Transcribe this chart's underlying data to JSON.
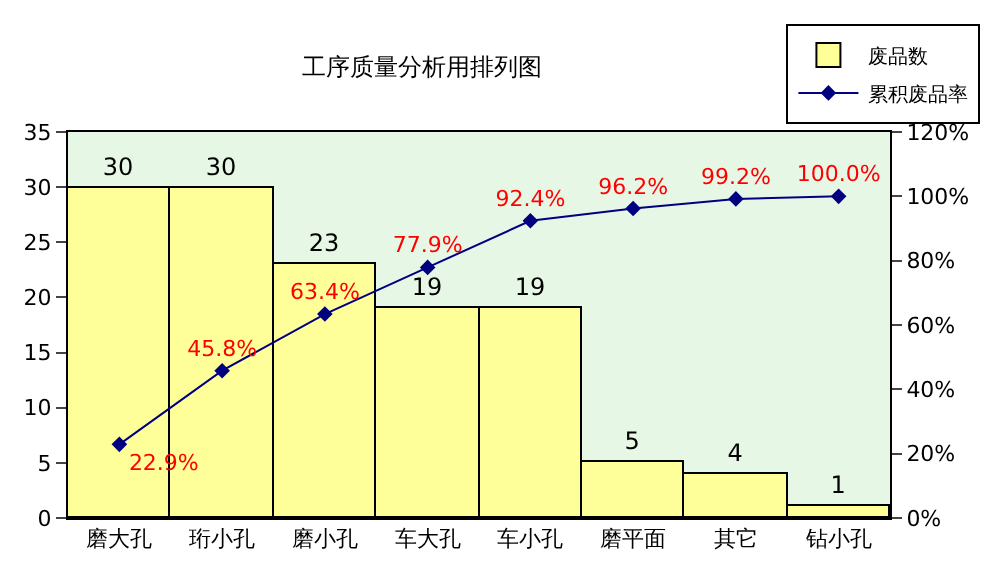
{
  "chart_data": {
    "type": "bar",
    "title": "工序质量分析用排列图",
    "categories": [
      "磨大孔",
      "珩小孔",
      "磨小孔",
      "车大孔",
      "车小孔",
      "磨平面",
      "其它",
      "钻小孔"
    ],
    "series": [
      {
        "name": "废品数",
        "color": "#ffff99",
        "values": [
          30,
          30,
          23,
          19,
          19,
          5,
          4,
          1
        ],
        "data_labels": true
      },
      {
        "name": "累积废品率",
        "type": "line",
        "axis": "y2",
        "color": "#000080",
        "marker": "diamond",
        "values": [
          22.9,
          45.8,
          63.4,
          77.9,
          92.4,
          96.2,
          99.2,
          100.0
        ],
        "value_labels": [
          "22.9%",
          "45.8%",
          "63.4%",
          "77.9%",
          "92.4%",
          "96.2%",
          "99.2%",
          "100.0%"
        ]
      }
    ],
    "ylim": [
      0,
      35
    ],
    "yticks": [
      0,
      5,
      10,
      15,
      20,
      25,
      30,
      35
    ],
    "y2lim": [
      0,
      120
    ],
    "y2ticks": [
      {
        "value": 0,
        "label": "0%"
      },
      {
        "value": 20,
        "label": "20%"
      },
      {
        "value": 40,
        "label": "40%"
      },
      {
        "value": 60,
        "label": "60%"
      },
      {
        "value": 80,
        "label": "80%"
      },
      {
        "value": 100,
        "label": "100%"
      },
      {
        "value": 120,
        "label": "120%"
      }
    ],
    "legend": "top right",
    "grid": false
  }
}
